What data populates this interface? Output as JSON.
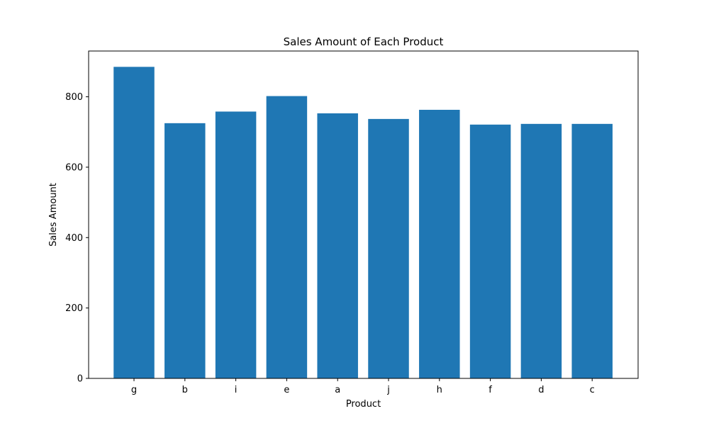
{
  "chart_data": {
    "type": "bar",
    "title": "Sales Amount of Each Product",
    "xlabel": "Product",
    "ylabel": "Sales Amount",
    "categories": [
      "g",
      "b",
      "i",
      "e",
      "a",
      "j",
      "h",
      "f",
      "d",
      "c"
    ],
    "values": [
      885,
      725,
      758,
      802,
      753,
      737,
      763,
      721,
      723,
      723
    ],
    "ylim": [
      0,
      930
    ],
    "yticks": [
      0,
      200,
      400,
      600,
      800
    ],
    "grid": false,
    "bar_color": "#1f77b4"
  }
}
